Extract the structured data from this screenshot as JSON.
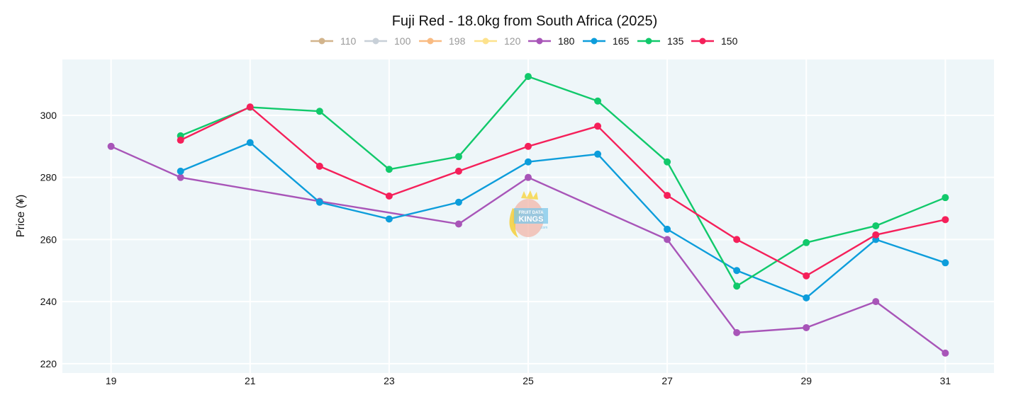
{
  "chart_data": {
    "type": "line",
    "title": "Fuji Red - 18.0kg from South Africa (2025)",
    "xlabel": "",
    "ylabel": "Price (¥)",
    "xlim": [
      18.3,
      31.7
    ],
    "ylim": [
      217,
      318
    ],
    "x_ticks": [
      19,
      21,
      23,
      25,
      27,
      29,
      31
    ],
    "y_ticks": [
      220,
      240,
      260,
      280,
      300
    ],
    "grid": true,
    "legend_position": "top-center",
    "plot_background": "#EEF6F9",
    "watermark": "Fruit Data Kings logo",
    "series": [
      {
        "name": "110",
        "color": "#D2B48C",
        "visible": false,
        "points": []
      },
      {
        "name": "100",
        "color": "#C8D0D8",
        "visible": false,
        "points": []
      },
      {
        "name": "198",
        "color": "#F9BB82",
        "visible": false,
        "points": []
      },
      {
        "name": "120",
        "color": "#FDE28D",
        "visible": false,
        "points": []
      },
      {
        "name": "180",
        "color": "#A855B8",
        "visible": true,
        "points": [
          [
            19,
            290
          ],
          [
            20,
            280
          ],
          [
            22,
            272.3
          ],
          [
            24,
            265
          ],
          [
            25,
            280
          ],
          [
            27,
            260
          ],
          [
            28,
            230
          ],
          [
            29,
            231.6
          ],
          [
            30,
            240
          ],
          [
            31,
            223.4
          ]
        ]
      },
      {
        "name": "165",
        "color": "#0D9DDB",
        "visible": true,
        "points": [
          [
            20,
            282
          ],
          [
            21,
            291.2
          ],
          [
            22,
            272
          ],
          [
            23,
            266.6
          ],
          [
            24,
            272
          ],
          [
            25,
            285
          ],
          [
            26,
            287.5
          ],
          [
            27,
            263.3
          ],
          [
            28,
            250
          ],
          [
            29,
            241.2
          ],
          [
            30,
            260
          ],
          [
            31,
            252.5
          ]
        ]
      },
      {
        "name": "135",
        "color": "#11C96B",
        "visible": true,
        "points": [
          [
            20,
            293.4
          ],
          [
            21,
            302.6
          ],
          [
            22,
            301.3
          ],
          [
            23,
            282.6
          ],
          [
            24,
            286.7
          ],
          [
            25,
            312.5
          ],
          [
            26,
            304.6
          ],
          [
            27,
            285
          ],
          [
            28,
            245
          ],
          [
            29,
            259
          ],
          [
            30,
            264.4
          ],
          [
            31,
            273.5
          ]
        ]
      },
      {
        "name": "150",
        "color": "#F5205A",
        "visible": true,
        "points": [
          [
            20,
            292
          ],
          [
            21,
            302.7
          ],
          [
            22,
            283.6
          ],
          [
            23,
            274
          ],
          [
            24,
            282
          ],
          [
            25,
            290
          ],
          [
            26,
            296.5
          ],
          [
            27,
            274.2
          ],
          [
            28,
            260
          ],
          [
            29,
            248.3
          ],
          [
            30,
            261.5
          ],
          [
            31,
            266.4
          ]
        ]
      }
    ]
  }
}
